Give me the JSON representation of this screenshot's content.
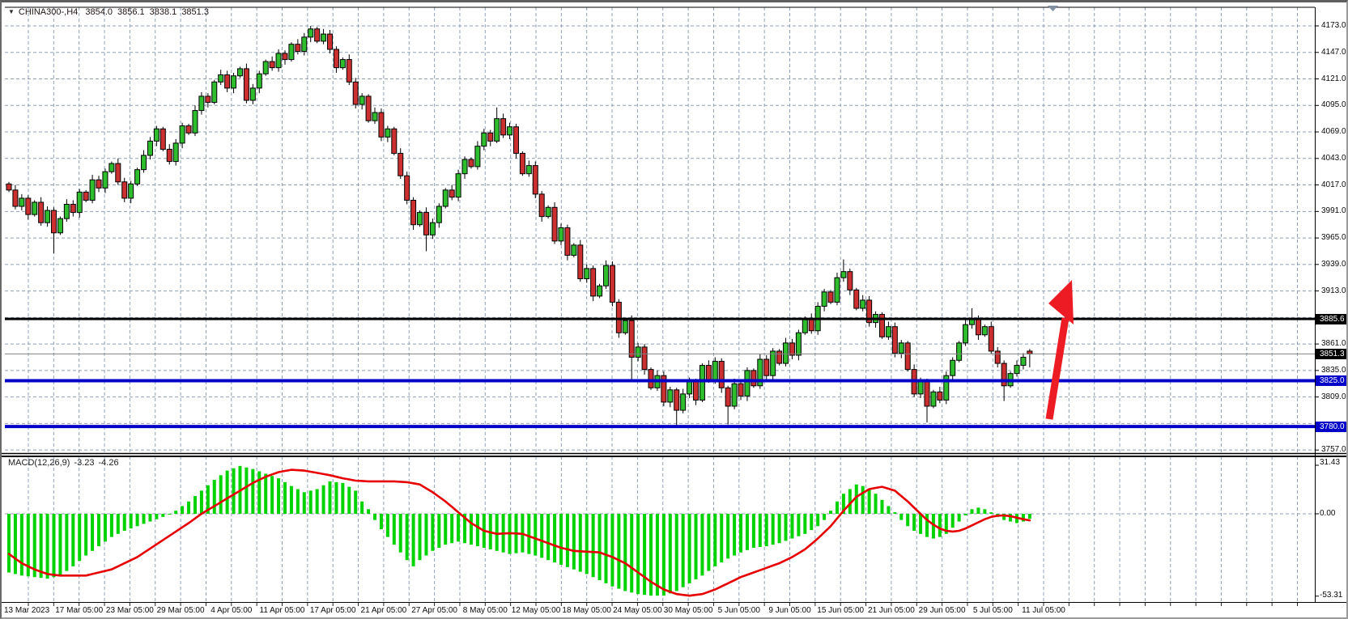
{
  "header": {
    "symbol": "CHINA300-,H4",
    "open": "3854.0",
    "high": "3856.1",
    "low": "3838.1",
    "close": "3851.3"
  },
  "colors": {
    "bull_candle": "#2dbd2d",
    "bear_candle": "#cc2f2f",
    "candle_outline": "#000000",
    "macd_histogram": "#00d300",
    "macd_signal": "#e60000",
    "grid": "#8fa0b4",
    "resistance_line": "#000000",
    "current_price_line": "#808080",
    "support_line": "#0000c8",
    "arrow": "#ed1c24",
    "badge_black": "#000000",
    "badge_blue": "#0000c8"
  },
  "price_axis": {
    "labels": [
      "4173.0",
      "4147.0",
      "4121.0",
      "4095.0",
      "4069.0",
      "4043.0",
      "4017.0",
      "3991.0",
      "3965.0",
      "3939.0",
      "3913.0",
      "3861.0",
      "3835.0",
      "3809.0",
      "3757.0"
    ],
    "label_prices": [
      4173,
      4147,
      4121,
      4095,
      4069,
      4043,
      4017,
      3991,
      3965,
      3939,
      3913,
      3861,
      3835,
      3809,
      3757
    ],
    "badges": [
      {
        "text": "3885.6",
        "price": 3885.6,
        "style": "black",
        "name": "resistance-price-badge"
      },
      {
        "text": "3851.3",
        "price": 3851.3,
        "style": "black",
        "name": "current-price-badge"
      },
      {
        "text": "3825.0",
        "price": 3825.0,
        "style": "blue",
        "name": "support1-price-badge"
      },
      {
        "text": "3780.0",
        "price": 3780.0,
        "style": "blue",
        "name": "support2-price-badge"
      }
    ]
  },
  "time_axis": {
    "labels": [
      "13 Mar 2023",
      "17 Mar 05:00",
      "23 Mar 05:00",
      "29 Mar 05:00",
      "4 Apr 05:00",
      "11 Apr 05:00",
      "17 Apr 05:00",
      "21 Apr 05:00",
      "27 Apr 05:00",
      "8 May 05:00",
      "12 May 05:00",
      "18 May 05:00",
      "24 May 05:00",
      "30 May 05:00",
      "5 Jun 05:00",
      "9 Jun 05:00",
      "15 Jun 05:00",
      "21 Jun 05:00",
      "29 Jun 05:00",
      "5 Jul 05:00",
      "11 Jul 05:00"
    ]
  },
  "macd_panel": {
    "label": "MACD(12,26,9)",
    "value_main": "-3.23",
    "value_signal": "-4.26",
    "axis_max": "31.43",
    "axis_zero": "0.00",
    "axis_min": "-53.31"
  },
  "levels": {
    "resistance": 3885.6,
    "current_price": 3851.3,
    "support1": 3825.0,
    "support2": 3780.0
  },
  "chart_data": [
    {
      "type": "candlestick",
      "title": "CHINA300-,H4",
      "timeframe": "H4",
      "ylim": [
        3745,
        4185
      ],
      "grid_step": 26,
      "first_open": 4018,
      "open_equals_previous_close": true,
      "closes": [
        4012,
        3996,
        4004,
        3988,
        4000,
        3980,
        3992,
        3970,
        3984,
        3998,
        3990,
        4010,
        4002,
        4022,
        4014,
        4030,
        4038,
        4020,
        4004,
        4018,
        4032,
        4046,
        4060,
        4072,
        4052,
        4040,
        4058,
        4075,
        4068,
        4090,
        4104,
        4098,
        4118,
        4125,
        4112,
        4124,
        4131,
        4100,
        4112,
        4126,
        4138,
        4132,
        4146,
        4140,
        4155,
        4148,
        4162,
        4170,
        4158,
        4165,
        4150,
        4132,
        4140,
        4118,
        4096,
        4104,
        4080,
        4088,
        4064,
        4072,
        4048,
        4026,
        4002,
        3978,
        3990,
        3968,
        3980,
        3996,
        4012,
        4005,
        4028,
        4042,
        4035,
        4055,
        4068,
        4060,
        4082,
        4066,
        4074,
        4048,
        4028,
        4036,
        4008,
        3986,
        3995,
        3962,
        3975,
        3948,
        3958,
        3925,
        3935,
        3908,
        3918,
        3938,
        3902,
        3872,
        3884,
        3848,
        3858,
        3836,
        3818,
        3830,
        3804,
        3816,
        3796,
        3812,
        3824,
        3806,
        3840,
        3826,
        3844,
        3818,
        3800,
        3822,
        3810,
        3835,
        3820,
        3846,
        3830,
        3854,
        3842,
        3862,
        3850,
        3872,
        3886,
        3874,
        3898,
        3912,
        3902,
        3926,
        3932,
        3914,
        3896,
        3904,
        3882,
        3890,
        3868,
        3878,
        3852,
        3862,
        3836,
        3812,
        3824,
        3800,
        3814,
        3806,
        3830,
        3845,
        3862,
        3880,
        3886,
        3870,
        3878,
        3854,
        3842,
        3820,
        3832,
        3840,
        3848,
        3851.3
      ],
      "wick_high_overrides": {
        "47": 4173,
        "76": 4093,
        "130": 3944,
        "150": 3896
      },
      "wick_low_overrides": {
        "7": 3950,
        "65": 3952,
        "97": 3825,
        "104": 3780,
        "112": 3782,
        "143": 3784,
        "155": 3805
      },
      "last_bar": {
        "o": 3854.0,
        "h": 3856.1,
        "l": 3838.1,
        "c": 3851.3
      },
      "horizontal_lines": [
        {
          "price": 3885.6,
          "color": "#000000",
          "width": 3
        },
        {
          "price": 3851.3,
          "color": "#808080",
          "width": 1
        },
        {
          "price": 3825.0,
          "color": "#0000c8",
          "width": 4
        },
        {
          "price": 3780.0,
          "color": "#0000c8",
          "width": 4
        }
      ]
    },
    {
      "type": "bar",
      "subtype": "macd-histogram-with-signal",
      "title": "MACD(12,26,9)",
      "ylim": [
        -53.31,
        31.43
      ],
      "current_main": -3.23,
      "current_signal": -4.26,
      "histogram_anchors": [
        [
          0,
          -38
        ],
        [
          2,
          -40
        ],
        [
          4,
          -41
        ],
        [
          6,
          -42
        ],
        [
          8,
          -40
        ],
        [
          10,
          -34
        ],
        [
          12,
          -27
        ],
        [
          14,
          -21
        ],
        [
          16,
          -15
        ],
        [
          18,
          -11
        ],
        [
          20,
          -8
        ],
        [
          22,
          -5
        ],
        [
          24,
          -2
        ],
        [
          26,
          2
        ],
        [
          28,
          8
        ],
        [
          30,
          15
        ],
        [
          32,
          22
        ],
        [
          34,
          28
        ],
        [
          36,
          31
        ],
        [
          38,
          29
        ],
        [
          40,
          26
        ],
        [
          42,
          23
        ],
        [
          44,
          18
        ],
        [
          46,
          14
        ],
        [
          48,
          16
        ],
        [
          50,
          21
        ],
        [
          52,
          20
        ],
        [
          54,
          15
        ],
        [
          55,
          8
        ],
        [
          56,
          3
        ],
        [
          57,
          -4
        ],
        [
          58,
          -10
        ],
        [
          60,
          -20
        ],
        [
          62,
          -30
        ],
        [
          63,
          -34
        ],
        [
          64,
          -30
        ],
        [
          66,
          -24
        ],
        [
          68,
          -20
        ],
        [
          70,
          -18
        ],
        [
          72,
          -20
        ],
        [
          74,
          -22
        ],
        [
          76,
          -24
        ],
        [
          78,
          -26
        ],
        [
          80,
          -25
        ],
        [
          82,
          -27
        ],
        [
          84,
          -30
        ],
        [
          86,
          -33
        ],
        [
          88,
          -36
        ],
        [
          90,
          -39
        ],
        [
          92,
          -43
        ],
        [
          94,
          -47
        ],
        [
          96,
          -50
        ],
        [
          98,
          -52
        ],
        [
          100,
          -53
        ],
        [
          102,
          -53
        ],
        [
          104,
          -50
        ],
        [
          106,
          -45
        ],
        [
          108,
          -40
        ],
        [
          110,
          -34
        ],
        [
          112,
          -29
        ],
        [
          114,
          -25
        ],
        [
          116,
          -22
        ],
        [
          118,
          -21
        ],
        [
          120,
          -19
        ],
        [
          122,
          -16
        ],
        [
          124,
          -13
        ],
        [
          126,
          -8
        ],
        [
          127,
          -4
        ],
        [
          128,
          2
        ],
        [
          129,
          8
        ],
        [
          130,
          13
        ],
        [
          131,
          16
        ],
        [
          132,
          19
        ],
        [
          133,
          18
        ],
        [
          134,
          16
        ],
        [
          135,
          13
        ],
        [
          136,
          9
        ],
        [
          137,
          5
        ],
        [
          138,
          1
        ],
        [
          139,
          -4
        ],
        [
          140,
          -8
        ],
        [
          141,
          -11
        ],
        [
          142,
          -13
        ],
        [
          143,
          -15
        ],
        [
          144,
          -16
        ],
        [
          145,
          -15
        ],
        [
          146,
          -13
        ],
        [
          147,
          -9
        ],
        [
          148,
          -5
        ],
        [
          149,
          -1
        ],
        [
          150,
          3
        ],
        [
          151,
          4
        ],
        [
          152,
          3
        ],
        [
          153,
          1
        ],
        [
          154,
          -2
        ],
        [
          155,
          -4
        ],
        [
          156,
          -5
        ],
        [
          157,
          -6
        ],
        [
          158,
          -5
        ],
        [
          159,
          -3.23
        ]
      ],
      "signal_anchors": [
        [
          0,
          -26
        ],
        [
          2,
          -32
        ],
        [
          4,
          -36
        ],
        [
          6,
          -39
        ],
        [
          8,
          -40
        ],
        [
          12,
          -40
        ],
        [
          16,
          -36
        ],
        [
          20,
          -28
        ],
        [
          24,
          -17
        ],
        [
          28,
          -6
        ],
        [
          30,
          0
        ],
        [
          32,
          5
        ],
        [
          34,
          10
        ],
        [
          36,
          15
        ],
        [
          38,
          20
        ],
        [
          40,
          24
        ],
        [
          42,
          27
        ],
        [
          44,
          28.5
        ],
        [
          46,
          28
        ],
        [
          48,
          26.5
        ],
        [
          50,
          25
        ],
        [
          52,
          23
        ],
        [
          54,
          21.5
        ],
        [
          56,
          21
        ],
        [
          58,
          21
        ],
        [
          60,
          21
        ],
        [
          62,
          20.5
        ],
        [
          64,
          19
        ],
        [
          66,
          14
        ],
        [
          68,
          8
        ],
        [
          70,
          1
        ],
        [
          72,
          -6
        ],
        [
          74,
          -11
        ],
        [
          76,
          -13
        ],
        [
          78,
          -12.5
        ],
        [
          80,
          -13
        ],
        [
          82,
          -16
        ],
        [
          84,
          -19
        ],
        [
          86,
          -22
        ],
        [
          88,
          -24
        ],
        [
          90,
          -24.5
        ],
        [
          92,
          -25
        ],
        [
          94,
          -28
        ],
        [
          96,
          -32
        ],
        [
          98,
          -38
        ],
        [
          100,
          -44
        ],
        [
          102,
          -49
        ],
        [
          104,
          -52
        ],
        [
          106,
          -53
        ],
        [
          108,
          -52
        ],
        [
          110,
          -49
        ],
        [
          112,
          -45
        ],
        [
          114,
          -41
        ],
        [
          116,
          -38
        ],
        [
          118,
          -35
        ],
        [
          120,
          -32
        ],
        [
          122,
          -28
        ],
        [
          124,
          -23
        ],
        [
          126,
          -16
        ],
        [
          128,
          -8
        ],
        [
          130,
          2
        ],
        [
          132,
          11
        ],
        [
          134,
          16
        ],
        [
          136,
          17.5
        ],
        [
          138,
          15
        ],
        [
          140,
          8
        ],
        [
          142,
          0
        ],
        [
          143,
          -4
        ],
        [
          144,
          -7
        ],
        [
          145,
          -9.5
        ],
        [
          146,
          -11
        ],
        [
          147,
          -11.5
        ],
        [
          148,
          -11
        ],
        [
          149,
          -9.5
        ],
        [
          150,
          -7.5
        ],
        [
          151,
          -5.5
        ],
        [
          152,
          -3.5
        ],
        [
          153,
          -2
        ],
        [
          154,
          -1.2
        ],
        [
          155,
          -1
        ],
        [
          156,
          -1.5
        ],
        [
          157,
          -2.5
        ],
        [
          158,
          -3.5
        ],
        [
          159,
          -4.26
        ]
      ]
    }
  ],
  "annotations": {
    "trend_arrow": {
      "direction": "up",
      "color": "#ed1c24"
    },
    "scroll_marker": {
      "shape": "triangle-down",
      "color": "#7f8fa0"
    }
  }
}
